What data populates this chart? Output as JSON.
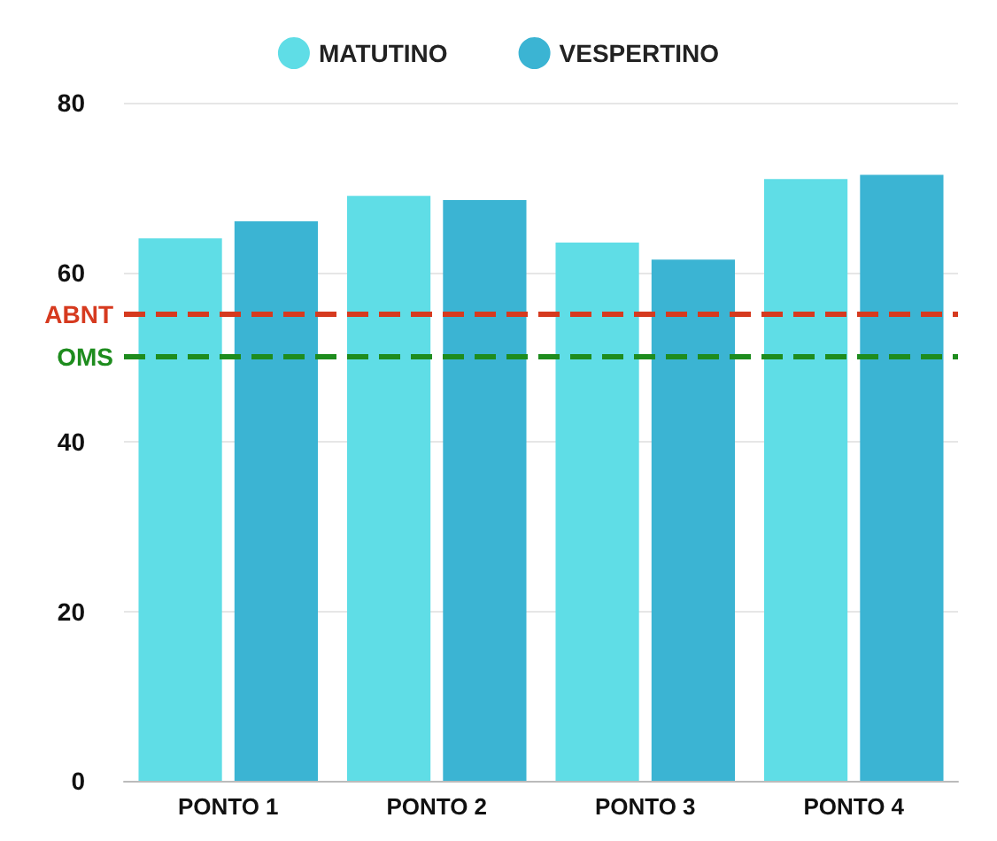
{
  "chart_data": {
    "type": "bar",
    "categories": [
      "PONTO 1",
      "PONTO 2",
      "PONTO 3",
      "PONTO 4"
    ],
    "series": [
      {
        "name": "MATUTINO",
        "color": "#5fdde6",
        "values": [
          64,
          69,
          63.5,
          71
        ]
      },
      {
        "name": "VESPERTINO",
        "color": "#3bb4d3",
        "values": [
          66,
          68.5,
          61.5,
          71.5
        ]
      }
    ],
    "ylim": [
      0,
      80
    ],
    "yticks": [
      0,
      20,
      40,
      60,
      80
    ],
    "grid": "y",
    "legend": "top",
    "ref_lines": [
      {
        "axis": "y",
        "value": 55,
        "label": "ABNT",
        "color": "#d63a1f",
        "line_style": "dashed"
      },
      {
        "axis": "y",
        "value": 50,
        "label": "OMS",
        "color": "#1e8c1e",
        "line_style": "dashed"
      }
    ]
  }
}
